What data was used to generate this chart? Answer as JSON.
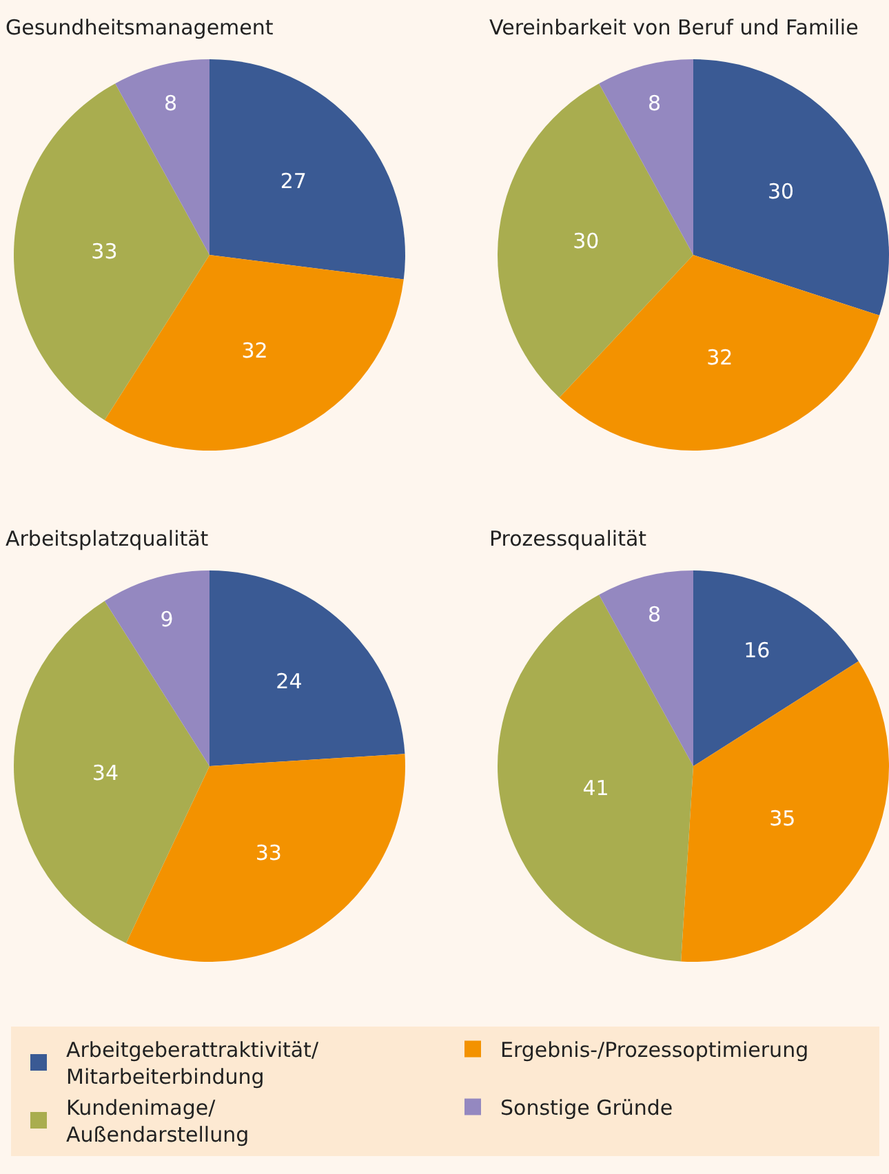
{
  "chart_data": [
    {
      "type": "pie",
      "title": "Gesundheitsmanagement",
      "categories": [
        "Arbeitgeberattraktivität/ Mitarbeiterbindung",
        "Ergebnis-/Prozessoptimierung",
        "Kundenimage/ Außendarstellung",
        "Sonstige Gründe"
      ],
      "values": [
        27,
        32,
        33,
        8
      ],
      "colors": [
        "#3a5a94",
        "#f39200",
        "#a9ad4f",
        "#9488c0"
      ],
      "data_labels": true,
      "legend": "bottom"
    },
    {
      "type": "pie",
      "title": "Vereinbarkeit von Beruf und Familie",
      "categories": [
        null,
        null,
        null,
        null
      ],
      "values": [
        30,
        32,
        30,
        8
      ],
      "colors": [
        "#3a5a94",
        "#f39200",
        "#a9ad4f",
        "#9488c0"
      ],
      "data_labels": true
    },
    {
      "type": "pie",
      "title": "Arbeitsplatzqualität",
      "categories": [
        null,
        null,
        null,
        null
      ],
      "values": [
        24,
        33,
        34,
        9
      ],
      "colors": [
        "#3a5a94",
        "#f39200",
        "#a9ad4f",
        "#9488c0"
      ],
      "data_labels": true
    },
    {
      "type": "pie",
      "title": "Prozessqualität",
      "categories": [
        null,
        null,
        null,
        null
      ],
      "values": [
        16,
        35,
        41,
        8
      ],
      "colors": [
        "#3a5a94",
        "#f39200",
        "#a9ad4f",
        "#9488c0"
      ],
      "data_labels": true
    }
  ]
}
